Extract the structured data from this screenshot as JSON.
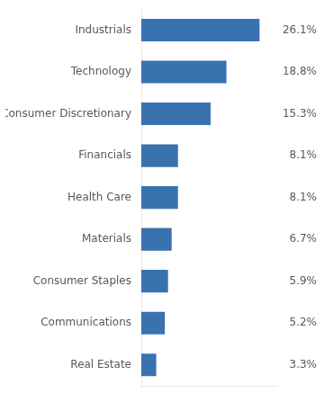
{
  "chart_data": {
    "type": "bar",
    "orientation": "horizontal",
    "categories": [
      "Industrials",
      "Technology",
      "Consumer Discretionary",
      "Financials",
      "Health Care",
      "Materials",
      "Consumer Staples",
      "Communications",
      "Real Estate"
    ],
    "values": [
      26.1,
      18.8,
      15.3,
      8.1,
      8.1,
      6.7,
      5.9,
      5.2,
      3.3
    ],
    "value_labels": [
      "26.1%",
      "18.8%",
      "15.3%",
      "8.1%",
      "8.1%",
      "6.7%",
      "5.9%",
      "5.2%",
      "3.3%"
    ],
    "color": "#3a72b0",
    "xlim": [
      0,
      30
    ],
    "grid": false,
    "data_labels": true,
    "tick_labels": "y"
  }
}
